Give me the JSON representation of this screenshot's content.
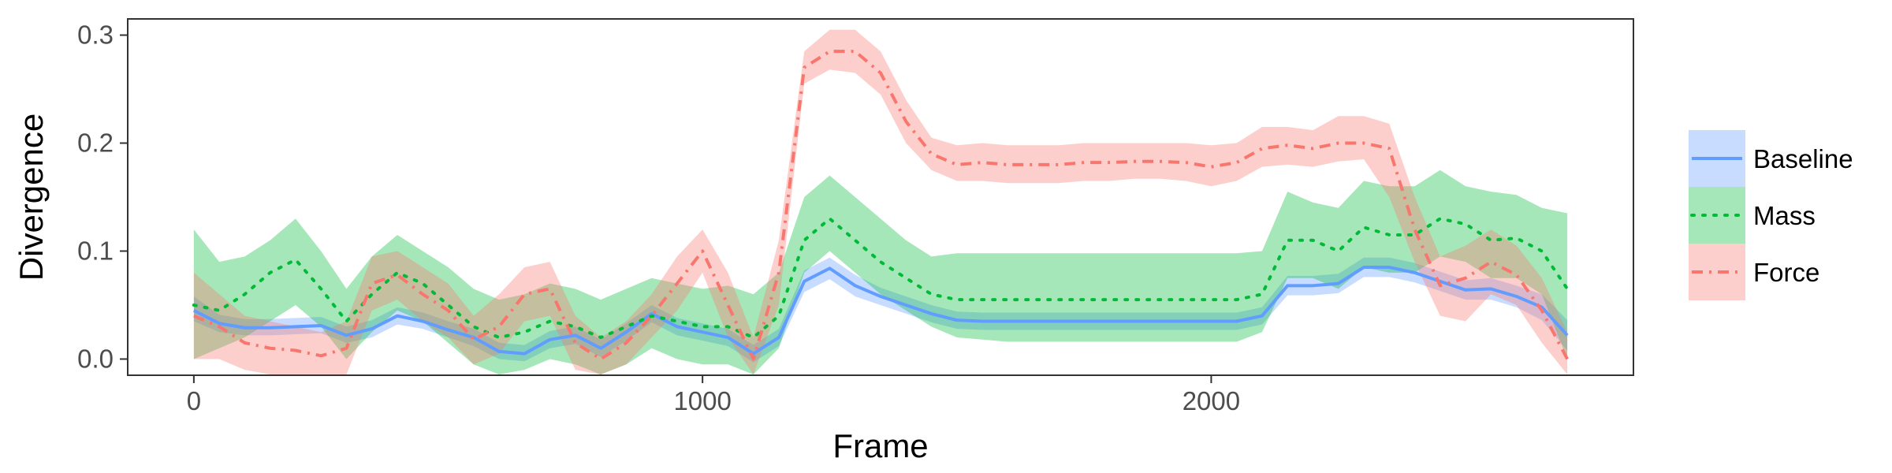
{
  "chart_data": {
    "type": "line",
    "xlabel": "Frame",
    "ylabel": "Divergence",
    "xlim": [
      -130,
      2830
    ],
    "ylim": [
      -0.015,
      0.315
    ],
    "xticks": [
      0,
      1000,
      2000
    ],
    "yticks": [
      0.0,
      0.1,
      0.2,
      0.3
    ],
    "ytick_labels": [
      "0.0",
      "0.1",
      "0.2",
      "0.3"
    ],
    "grid": false,
    "legend_position": "right",
    "x": [
      0,
      50,
      100,
      150,
      200,
      250,
      300,
      350,
      400,
      450,
      500,
      550,
      600,
      650,
      700,
      750,
      800,
      850,
      900,
      950,
      1000,
      1050,
      1100,
      1150,
      1200,
      1250,
      1300,
      1350,
      1400,
      1450,
      1500,
      1550,
      1600,
      1650,
      1700,
      1750,
      1800,
      1850,
      1900,
      1950,
      2000,
      2050,
      2100,
      2150,
      2200,
      2250,
      2300,
      2350,
      2400,
      2450,
      2500,
      2550,
      2600,
      2650,
      2700
    ],
    "series": [
      {
        "name": "Baseline",
        "color": "#619cff",
        "dash": "solid",
        "values": [
          0.045,
          0.033,
          0.029,
          0.029,
          0.03,
          0.031,
          0.022,
          0.028,
          0.04,
          0.035,
          0.027,
          0.02,
          0.007,
          0.005,
          0.018,
          0.022,
          0.01,
          0.025,
          0.042,
          0.03,
          0.025,
          0.02,
          0.005,
          0.02,
          0.072,
          0.084,
          0.068,
          0.058,
          0.05,
          0.042,
          0.036,
          0.035,
          0.035,
          0.035,
          0.035,
          0.035,
          0.035,
          0.035,
          0.035,
          0.035,
          0.035,
          0.035,
          0.04,
          0.068,
          0.068,
          0.07,
          0.085,
          0.085,
          0.08,
          0.072,
          0.064,
          0.065,
          0.058,
          0.048,
          0.022
        ],
        "lower": [
          0.035,
          0.025,
          0.022,
          0.022,
          0.023,
          0.024,
          0.015,
          0.02,
          0.032,
          0.028,
          0.02,
          0.012,
          0.0,
          -0.002,
          0.01,
          0.014,
          0.002,
          0.017,
          0.034,
          0.022,
          0.017,
          0.012,
          -0.003,
          0.012,
          0.062,
          0.074,
          0.058,
          0.05,
          0.042,
          0.034,
          0.028,
          0.027,
          0.027,
          0.027,
          0.027,
          0.027,
          0.027,
          0.027,
          0.027,
          0.027,
          0.027,
          0.027,
          0.032,
          0.059,
          0.059,
          0.061,
          0.076,
          0.076,
          0.071,
          0.063,
          0.055,
          0.055,
          0.048,
          0.036,
          0.008
        ],
        "upper": [
          0.058,
          0.041,
          0.037,
          0.037,
          0.038,
          0.039,
          0.03,
          0.036,
          0.048,
          0.043,
          0.035,
          0.028,
          0.015,
          0.013,
          0.026,
          0.03,
          0.018,
          0.033,
          0.05,
          0.038,
          0.033,
          0.028,
          0.013,
          0.028,
          0.082,
          0.094,
          0.078,
          0.066,
          0.058,
          0.05,
          0.044,
          0.043,
          0.043,
          0.043,
          0.043,
          0.043,
          0.043,
          0.043,
          0.043,
          0.043,
          0.043,
          0.043,
          0.048,
          0.077,
          0.077,
          0.079,
          0.094,
          0.094,
          0.089,
          0.081,
          0.073,
          0.075,
          0.068,
          0.06,
          0.036
        ]
      },
      {
        "name": "Mass",
        "color": "#00ba38",
        "dash": "dotted",
        "values": [
          0.05,
          0.045,
          0.06,
          0.08,
          0.092,
          0.065,
          0.035,
          0.06,
          0.08,
          0.07,
          0.05,
          0.03,
          0.02,
          0.025,
          0.035,
          0.03,
          0.02,
          0.03,
          0.04,
          0.035,
          0.03,
          0.03,
          0.02,
          0.04,
          0.11,
          0.13,
          0.11,
          0.09,
          0.075,
          0.06,
          0.055,
          0.055,
          0.055,
          0.055,
          0.055,
          0.055,
          0.055,
          0.055,
          0.055,
          0.055,
          0.055,
          0.055,
          0.06,
          0.11,
          0.11,
          0.1,
          0.122,
          0.115,
          0.115,
          0.13,
          0.125,
          0.11,
          0.112,
          0.1,
          0.065
        ],
        "lower": [
          0.0,
          0.01,
          0.02,
          0.035,
          0.05,
          0.03,
          0.0,
          0.025,
          0.045,
          0.035,
          0.015,
          -0.005,
          -0.015,
          -0.01,
          0.0,
          -0.005,
          -0.015,
          -0.005,
          0.01,
          0.0,
          -0.005,
          -0.005,
          -0.02,
          0.01,
          0.08,
          0.1,
          0.08,
          0.06,
          0.045,
          0.03,
          0.02,
          0.018,
          0.016,
          0.016,
          0.016,
          0.016,
          0.016,
          0.016,
          0.016,
          0.016,
          0.016,
          0.016,
          0.025,
          0.075,
          0.075,
          0.065,
          0.085,
          0.08,
          0.08,
          0.095,
          0.09,
          0.075,
          0.075,
          0.06,
          0.0
        ],
        "upper": [
          0.12,
          0.09,
          0.095,
          0.11,
          0.13,
          0.1,
          0.065,
          0.095,
          0.115,
          0.1,
          0.085,
          0.065,
          0.055,
          0.06,
          0.07,
          0.065,
          0.055,
          0.065,
          0.075,
          0.07,
          0.065,
          0.068,
          0.06,
          0.08,
          0.15,
          0.17,
          0.15,
          0.13,
          0.11,
          0.095,
          0.098,
          0.098,
          0.098,
          0.098,
          0.098,
          0.098,
          0.098,
          0.098,
          0.098,
          0.098,
          0.098,
          0.098,
          0.1,
          0.155,
          0.145,
          0.14,
          0.165,
          0.16,
          0.16,
          0.175,
          0.16,
          0.155,
          0.152,
          0.14,
          0.135
        ]
      },
      {
        "name": "Force",
        "color": "#f8766d",
        "dash": "dashdot",
        "values": [
          0.04,
          0.03,
          0.015,
          0.01,
          0.008,
          0.003,
          0.01,
          0.07,
          0.078,
          0.06,
          0.045,
          0.018,
          0.03,
          0.06,
          0.065,
          0.015,
          0.0,
          0.015,
          0.04,
          0.07,
          0.1,
          0.05,
          0.0,
          0.08,
          0.27,
          0.285,
          0.285,
          0.265,
          0.22,
          0.19,
          0.18,
          0.182,
          0.18,
          0.18,
          0.18,
          0.182,
          0.182,
          0.183,
          0.183,
          0.182,
          0.178,
          0.182,
          0.195,
          0.198,
          0.195,
          0.2,
          0.2,
          0.195,
          0.12,
          0.068,
          0.075,
          0.09,
          0.078,
          0.045,
          0.0
        ],
        "lower": [
          0.0,
          0.0,
          -0.01,
          -0.015,
          -0.015,
          -0.02,
          -0.015,
          0.045,
          0.055,
          0.035,
          0.02,
          -0.005,
          0.005,
          0.035,
          0.04,
          -0.01,
          -0.02,
          -0.005,
          0.02,
          0.045,
          0.08,
          0.02,
          -0.02,
          0.05,
          0.255,
          0.268,
          0.265,
          0.245,
          0.2,
          0.175,
          0.165,
          0.165,
          0.163,
          0.163,
          0.163,
          0.165,
          0.165,
          0.167,
          0.167,
          0.165,
          0.16,
          0.165,
          0.178,
          0.18,
          0.178,
          0.183,
          0.185,
          0.15,
          0.09,
          0.04,
          0.035,
          0.06,
          0.05,
          0.015,
          -0.03
        ],
        "upper": [
          0.08,
          0.06,
          0.04,
          0.035,
          0.03,
          0.025,
          0.035,
          0.095,
          0.1,
          0.085,
          0.07,
          0.04,
          0.06,
          0.085,
          0.09,
          0.04,
          0.02,
          0.035,
          0.06,
          0.095,
          0.12,
          0.08,
          0.02,
          0.11,
          0.285,
          0.305,
          0.305,
          0.285,
          0.24,
          0.205,
          0.198,
          0.2,
          0.198,
          0.198,
          0.198,
          0.2,
          0.2,
          0.2,
          0.2,
          0.2,
          0.198,
          0.2,
          0.215,
          0.215,
          0.212,
          0.225,
          0.225,
          0.218,
          0.15,
          0.095,
          0.105,
          0.12,
          0.105,
          0.075,
          0.025
        ]
      }
    ]
  }
}
